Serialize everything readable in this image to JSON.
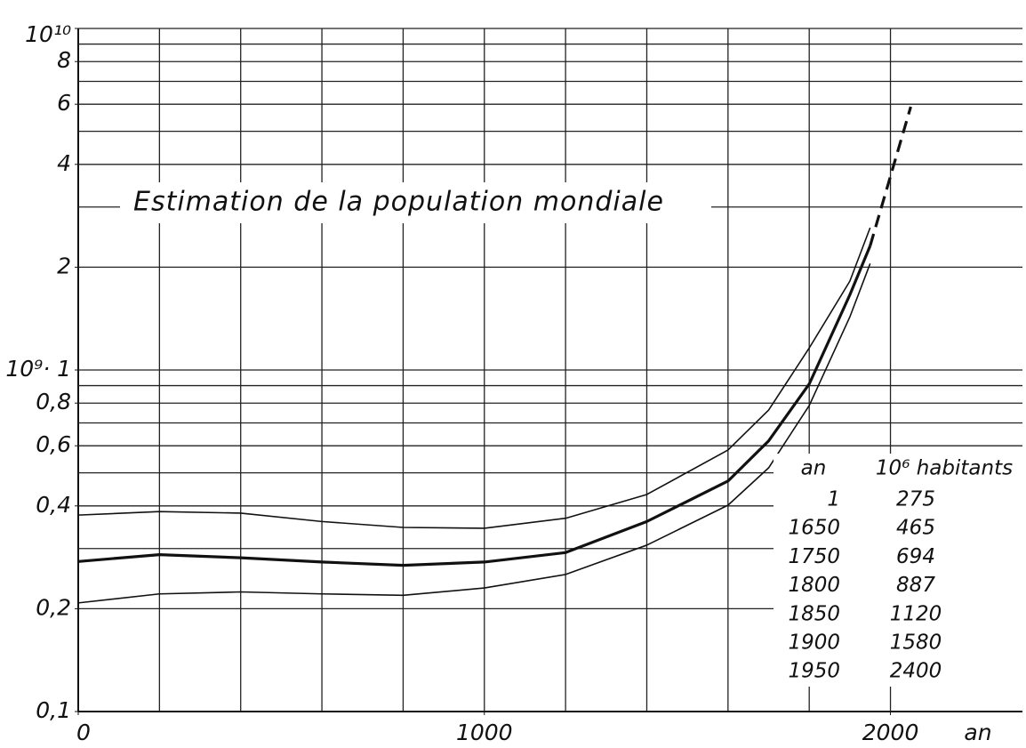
{
  "chart_data": {
    "type": "line",
    "title": "Estimation de la population mondiale",
    "x_label": "an",
    "log_y": true,
    "xlim": [
      0,
      2325
    ],
    "ylim": [
      0.1,
      10
    ],
    "xticks": [
      0,
      1000,
      2000
    ],
    "xgrid": [
      200,
      400,
      600,
      800,
      1000,
      1200,
      1400,
      1600,
      1800,
      2000
    ],
    "yticks": [
      {
        "value": 0.1,
        "label": "0,1"
      },
      {
        "value": 0.2,
        "label": "0,2"
      },
      {
        "value": 0.4,
        "label": "0,4"
      },
      {
        "value": 0.6,
        "label": "0,6"
      },
      {
        "value": 0.8,
        "label": "0,8"
      },
      {
        "value": 1,
        "label": "10⁹· 1"
      },
      2,
      4,
      6,
      8,
      {
        "value": 10,
        "label": "10¹⁰"
      }
    ],
    "ygrid": [
      0.2,
      0.3,
      0.4,
      0.5,
      0.6,
      0.7,
      0.8,
      0.9,
      1,
      2,
      3,
      4,
      5,
      6,
      7,
      8,
      9,
      10
    ],
    "series": [
      {
        "color": "#111111",
        "width": 1.6,
        "dash": false,
        "x": [
          0,
          200,
          400,
          600,
          800,
          1000,
          1200,
          1400,
          1600,
          1700,
          1800,
          1900,
          1950
        ],
        "values": [
          0.376,
          0.385,
          0.381,
          0.36,
          0.346,
          0.344,
          0.368,
          0.432,
          0.583,
          0.763,
          1.16,
          1.82,
          2.61
        ]
      },
      {
        "color": "#111111",
        "width": 3.2,
        "dash": false,
        "x": [
          0,
          200,
          400,
          600,
          800,
          1000,
          1200,
          1400,
          1600,
          1700,
          1800,
          1900,
          1950
        ],
        "values": [
          0.275,
          0.288,
          0.282,
          0.274,
          0.268,
          0.274,
          0.292,
          0.36,
          0.473,
          0.62,
          0.91,
          1.66,
          2.31
        ]
      },
      {
        "color": "#111111",
        "width": 1.6,
        "dash": false,
        "x": [
          0,
          200,
          400,
          600,
          800,
          1000,
          1200,
          1400,
          1600,
          1700,
          1800,
          1900,
          1950
        ],
        "values": [
          0.208,
          0.221,
          0.224,
          0.221,
          0.219,
          0.23,
          0.252,
          0.307,
          0.402,
          0.517,
          0.787,
          1.43,
          2.05
        ]
      },
      {
        "color": "#111111",
        "width": 3.2,
        "dash": true,
        "x": [
          1950,
          2050
        ],
        "values": [
          2.31,
          5.9
        ]
      }
    ],
    "table": {
      "columns": [
        "an",
        "10⁶ habitants"
      ],
      "rows": [
        [
          1,
          275
        ],
        [
          1650,
          465
        ],
        [
          1750,
          694
        ],
        [
          1800,
          887
        ],
        [
          1850,
          1120
        ],
        [
          1900,
          1580
        ],
        [
          1950,
          2400
        ]
      ]
    }
  }
}
